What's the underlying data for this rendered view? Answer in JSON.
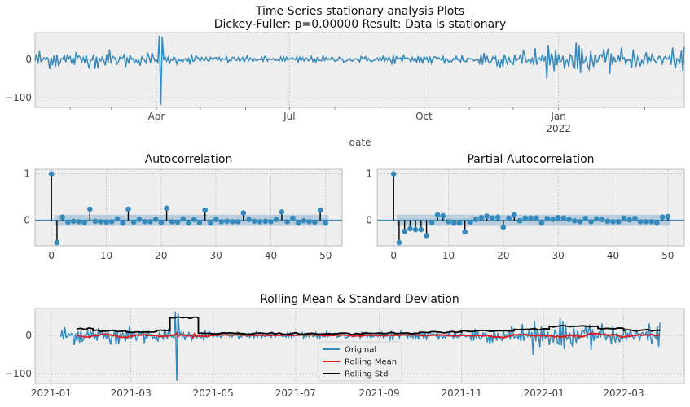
{
  "figure": {
    "title_line1": "Time Series stationary analysis Plots",
    "title_line2": "Dickey-Fuller: p=0.00000 Result: Data is stationary"
  },
  "colors": {
    "series_blue": "#348abd",
    "rolling_mean": "#e41a1c",
    "rolling_std": "#000000",
    "axes_bg": "#eeeeee",
    "grid": "#bcbcbc",
    "conf_band": "#a7c1d6"
  },
  "chart_data": [
    {
      "type": "line",
      "title": "",
      "xlabel": "date",
      "ylabel": "",
      "x_ticks": [
        "Apr",
        "Jul",
        "Oct",
        "Jan"
      ],
      "x_tick_sublabel": "2022",
      "y_ticks": [
        0,
        -100
      ],
      "ylim": [
        -125,
        70
      ],
      "x_range": [
        "2021-01-08",
        "2022-03-28"
      ],
      "series": [
        {
          "values_by_month": [
            {
              "month": "2021-01",
              "amplitude": 16
            },
            {
              "month": "2021-02",
              "amplitude": 14
            },
            {
              "month": "2021-03",
              "amplitude": 12
            },
            {
              "month": "2021-04",
              "amplitude": 8,
              "spike_max": 62,
              "spike_min": -118
            },
            {
              "month": "2021-05",
              "amplitude": 6
            },
            {
              "month": "2021-06",
              "amplitude": 5
            },
            {
              "month": "2021-07",
              "amplitude": 5
            },
            {
              "month": "2021-08",
              "amplitude": 6
            },
            {
              "month": "2021-09",
              "amplitude": 7
            },
            {
              "month": "2021-10",
              "amplitude": 9
            },
            {
              "month": "2021-11",
              "amplitude": 14
            },
            {
              "month": "2021-12",
              "amplitude": 18
            },
            {
              "month": "2022-01",
              "amplitude": 20
            },
            {
              "month": "2022-02",
              "amplitude": 17
            },
            {
              "month": "2022-03",
              "amplitude": 16
            }
          ]
        }
      ],
      "grid": true
    },
    {
      "type": "bar",
      "title": "Autocorrelation",
      "x_ticks": [
        0,
        10,
        20,
        30,
        40,
        50
      ],
      "y_ticks": [
        1,
        0
      ],
      "ylim": [
        -0.55,
        1.1
      ],
      "xlim": [
        -3,
        53
      ],
      "confidence_band": 0.12,
      "lags": [
        0,
        1,
        2,
        3,
        4,
        5,
        6,
        7,
        8,
        9,
        10,
        11,
        12,
        13,
        14,
        15,
        16,
        17,
        18,
        19,
        20,
        21,
        22,
        23,
        24,
        25,
        26,
        27,
        28,
        29,
        30,
        31,
        32,
        33,
        34,
        35,
        36,
        37,
        38,
        39,
        40,
        41,
        42,
        43,
        44,
        45,
        46,
        47,
        48,
        49,
        50
      ],
      "values": [
        1.0,
        -0.48,
        0.07,
        -0.04,
        -0.02,
        -0.03,
        -0.05,
        0.24,
        -0.02,
        -0.03,
        -0.04,
        -0.03,
        0.03,
        -0.06,
        0.24,
        -0.04,
        0.02,
        -0.03,
        -0.03,
        0.02,
        -0.05,
        0.26,
        -0.03,
        -0.04,
        0.03,
        -0.06,
        0.02,
        -0.05,
        0.22,
        -0.06,
        0.02,
        -0.03,
        -0.02,
        -0.03,
        -0.03,
        0.16,
        0.02,
        -0.02,
        -0.03,
        -0.02,
        -0.03,
        0.02,
        0.18,
        -0.03,
        0.05,
        -0.06,
        -0.01,
        -0.03,
        -0.04,
        0.22,
        -0.06
      ],
      "grid": true
    },
    {
      "type": "bar",
      "title": "Partial Autocorrelation",
      "x_ticks": [
        0,
        10,
        20,
        30,
        40,
        50
      ],
      "y_ticks": [
        1,
        0
      ],
      "ylim": [
        -0.55,
        1.1
      ],
      "xlim": [
        -3,
        53
      ],
      "confidence_band": 0.12,
      "lags": [
        0,
        1,
        2,
        3,
        4,
        5,
        6,
        7,
        8,
        9,
        10,
        11,
        12,
        13,
        14,
        15,
        16,
        17,
        18,
        19,
        20,
        21,
        22,
        23,
        24,
        25,
        26,
        27,
        28,
        29,
        30,
        31,
        32,
        33,
        34,
        35,
        36,
        37,
        38,
        39,
        40,
        41,
        42,
        43,
        44,
        45,
        46,
        47,
        48,
        49,
        50
      ],
      "values": [
        1.0,
        -0.48,
        -0.24,
        -0.18,
        -0.2,
        -0.2,
        -0.33,
        -0.05,
        0.12,
        0.1,
        -0.03,
        -0.06,
        -0.06,
        -0.25,
        -0.04,
        0.02,
        0.06,
        0.09,
        0.05,
        0.07,
        -0.15,
        0.05,
        0.12,
        -0.01,
        0.05,
        0.05,
        0.05,
        -0.06,
        0.04,
        0.02,
        0.06,
        0.05,
        0.02,
        -0.01,
        -0.03,
        0.04,
        -0.03,
        0.03,
        0.02,
        -0.02,
        -0.03,
        -0.03,
        0.05,
        0.01,
        0.04,
        -0.03,
        -0.03,
        -0.03,
        -0.06,
        0.07,
        0.08
      ],
      "grid": true
    },
    {
      "type": "line",
      "title": "Rolling Mean & Standard Deviation",
      "x_ticks": [
        "2021-01",
        "2021-03",
        "2021-05",
        "2021-07",
        "2021-09",
        "2021-11",
        "2022-01",
        "2022-03"
      ],
      "y_ticks": [
        0,
        -100
      ],
      "ylim": [
        -125,
        70
      ],
      "x_range": [
        "2020-12-20",
        "2022-04-15"
      ],
      "legend": {
        "placement": "lower-center",
        "entries": [
          "Original",
          "Rolling Mean",
          "Rolling Std"
        ]
      },
      "series": [
        {
          "name": "Original",
          "start": "2021-01-08",
          "end": "2022-03-28"
        },
        {
          "name": "Rolling Mean",
          "start": "2021-01-20",
          "end": "2022-03-28"
        },
        {
          "name": "Rolling Std",
          "start": "2021-01-20",
          "end": "2022-03-28",
          "levels": [
            {
              "from": "2021-01-20",
              "value": 17
            },
            {
              "from": "2021-02-01",
              "value": 12
            },
            {
              "from": "2021-02-25",
              "value": 10
            },
            {
              "from": "2021-03-20",
              "value": 12
            },
            {
              "from": "2021-03-30",
              "value": 46
            },
            {
              "from": "2021-04-20",
              "value": 6
            },
            {
              "from": "2021-05-20",
              "value": 5
            },
            {
              "from": "2021-07-10",
              "value": 4
            },
            {
              "from": "2021-08-20",
              "value": 6
            },
            {
              "from": "2021-10-01",
              "value": 8
            },
            {
              "from": "2021-11-01",
              "value": 12
            },
            {
              "from": "2021-12-10",
              "value": 16
            },
            {
              "from": "2022-01-05",
              "value": 24
            },
            {
              "from": "2022-02-10",
              "value": 18
            },
            {
              "from": "2022-03-01",
              "value": 13
            }
          ]
        }
      ],
      "grid": true
    }
  ]
}
